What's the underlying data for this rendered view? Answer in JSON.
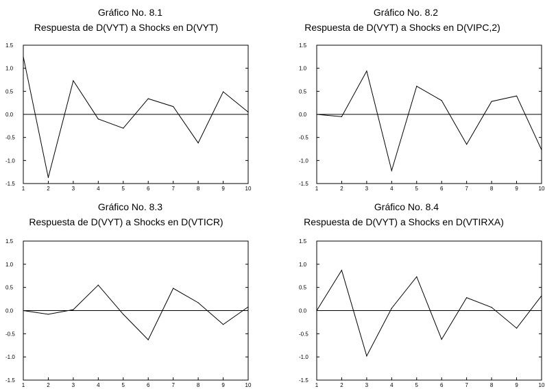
{
  "chart_data": [
    {
      "type": "line",
      "number": "Gráfico No. 8.1",
      "title": "Respuesta de D(VYT) a Shocks en D(VYT)",
      "x": [
        1,
        2,
        3,
        4,
        5,
        6,
        7,
        8,
        9,
        10
      ],
      "values": [
        1.25,
        -1.37,
        0.73,
        -0.1,
        -0.3,
        0.34,
        0.17,
        -0.62,
        0.49,
        0.05
      ],
      "ylim": [
        -1.5,
        1.5
      ],
      "yticks": [
        "1.5",
        "1.0",
        "0.5",
        "0.0",
        "-0.5",
        "-1.0",
        "-1.5"
      ],
      "xticks": [
        "1",
        "2",
        "3",
        "4",
        "5",
        "6",
        "7",
        "8",
        "9",
        "10"
      ],
      "zero_line": true,
      "grid": false,
      "line_color": "#000000"
    },
    {
      "type": "line",
      "number": "Gráfico No. 8.2",
      "title": "Respuesta de D(VYT) a Shocks en D(VIPC,2)",
      "x": [
        1,
        2,
        3,
        4,
        5,
        6,
        7,
        8,
        9,
        10
      ],
      "values": [
        0.0,
        -0.05,
        0.94,
        -1.22,
        0.61,
        0.3,
        -0.65,
        0.28,
        0.4,
        -0.77
      ],
      "ylim": [
        -1.5,
        1.5
      ],
      "yticks": [
        "1.5",
        "1.0",
        "0.5",
        "0.0",
        "-0.5",
        "-1.0",
        "-1.5"
      ],
      "xticks": [
        "1",
        "2",
        "3",
        "4",
        "5",
        "6",
        "7",
        "8",
        "9",
        "10"
      ],
      "zero_line": true,
      "grid": false,
      "line_color": "#000000"
    },
    {
      "type": "line",
      "number": "Gráfico No. 8.3",
      "title": "Respuesta de D(VYT) a Shocks en D(VTICR)",
      "x": [
        1,
        2,
        3,
        4,
        5,
        6,
        7,
        8,
        9,
        10
      ],
      "values": [
        0.0,
        -0.08,
        0.02,
        0.55,
        -0.08,
        -0.63,
        0.48,
        0.17,
        -0.3,
        0.08
      ],
      "ylim": [
        -1.5,
        1.5
      ],
      "yticks": [
        "1.5",
        "1.0",
        "0.5",
        "0.0",
        "-0.5",
        "-1.0",
        "-1.5"
      ],
      "xticks": [
        "1",
        "2",
        "3",
        "4",
        "5",
        "6",
        "7",
        "8",
        "9",
        "10"
      ],
      "zero_line": true,
      "grid": false,
      "line_color": "#000000"
    },
    {
      "type": "line",
      "number": "Gráfico No. 8.4",
      "title": "Respuesta de D(VYT) a Shocks en D(VTIRXA)",
      "x": [
        1,
        2,
        3,
        4,
        5,
        6,
        7,
        8,
        9,
        10
      ],
      "values": [
        0.0,
        0.87,
        -0.98,
        0.05,
        0.73,
        -0.62,
        0.28,
        0.07,
        -0.38,
        0.32
      ],
      "ylim": [
        -1.5,
        1.5
      ],
      "yticks": [
        "1.5",
        "1.0",
        "0.5",
        "0.0",
        "-0.5",
        "-1.0",
        "-1.5"
      ],
      "xticks": [
        "1",
        "2",
        "3",
        "4",
        "5",
        "6",
        "7",
        "8",
        "9",
        "10"
      ],
      "zero_line": true,
      "grid": false,
      "line_color": "#000000"
    }
  ]
}
